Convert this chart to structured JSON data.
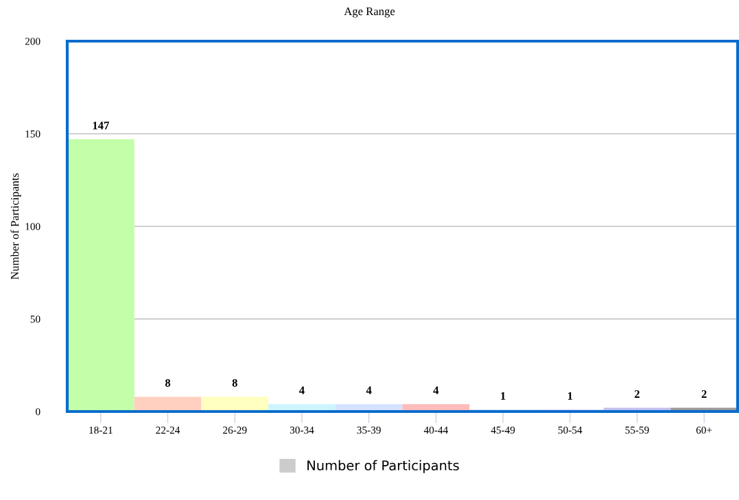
{
  "chart_data": {
    "type": "bar",
    "title": "Age Range",
    "ylabel": "Number of Participants",
    "categories": [
      "18-21",
      "22-24",
      "26-29",
      "30-34",
      "35-39",
      "40-44",
      "45-49",
      "50-54",
      "55-59",
      "60+"
    ],
    "series": [
      {
        "name": "Number of Participants",
        "color": "#cccccc",
        "values": [
          147,
          8,
          8,
          4,
          4,
          4,
          1,
          1,
          2,
          2
        ],
        "colors": [
          "#c2ffa8",
          "#ffd0c0",
          "#ffffc0",
          "#ccf5ff",
          "#d5e2ff",
          "#ffbcbc",
          "#b8d8f0",
          "#c8c0ff",
          "#c0c0f0",
          "#999999"
        ]
      }
    ],
    "ylim": [
      0,
      200
    ],
    "yticks": [
      0,
      50,
      100,
      150,
      200
    ],
    "grid": "y",
    "data_labels": true,
    "legend": "bottom"
  }
}
